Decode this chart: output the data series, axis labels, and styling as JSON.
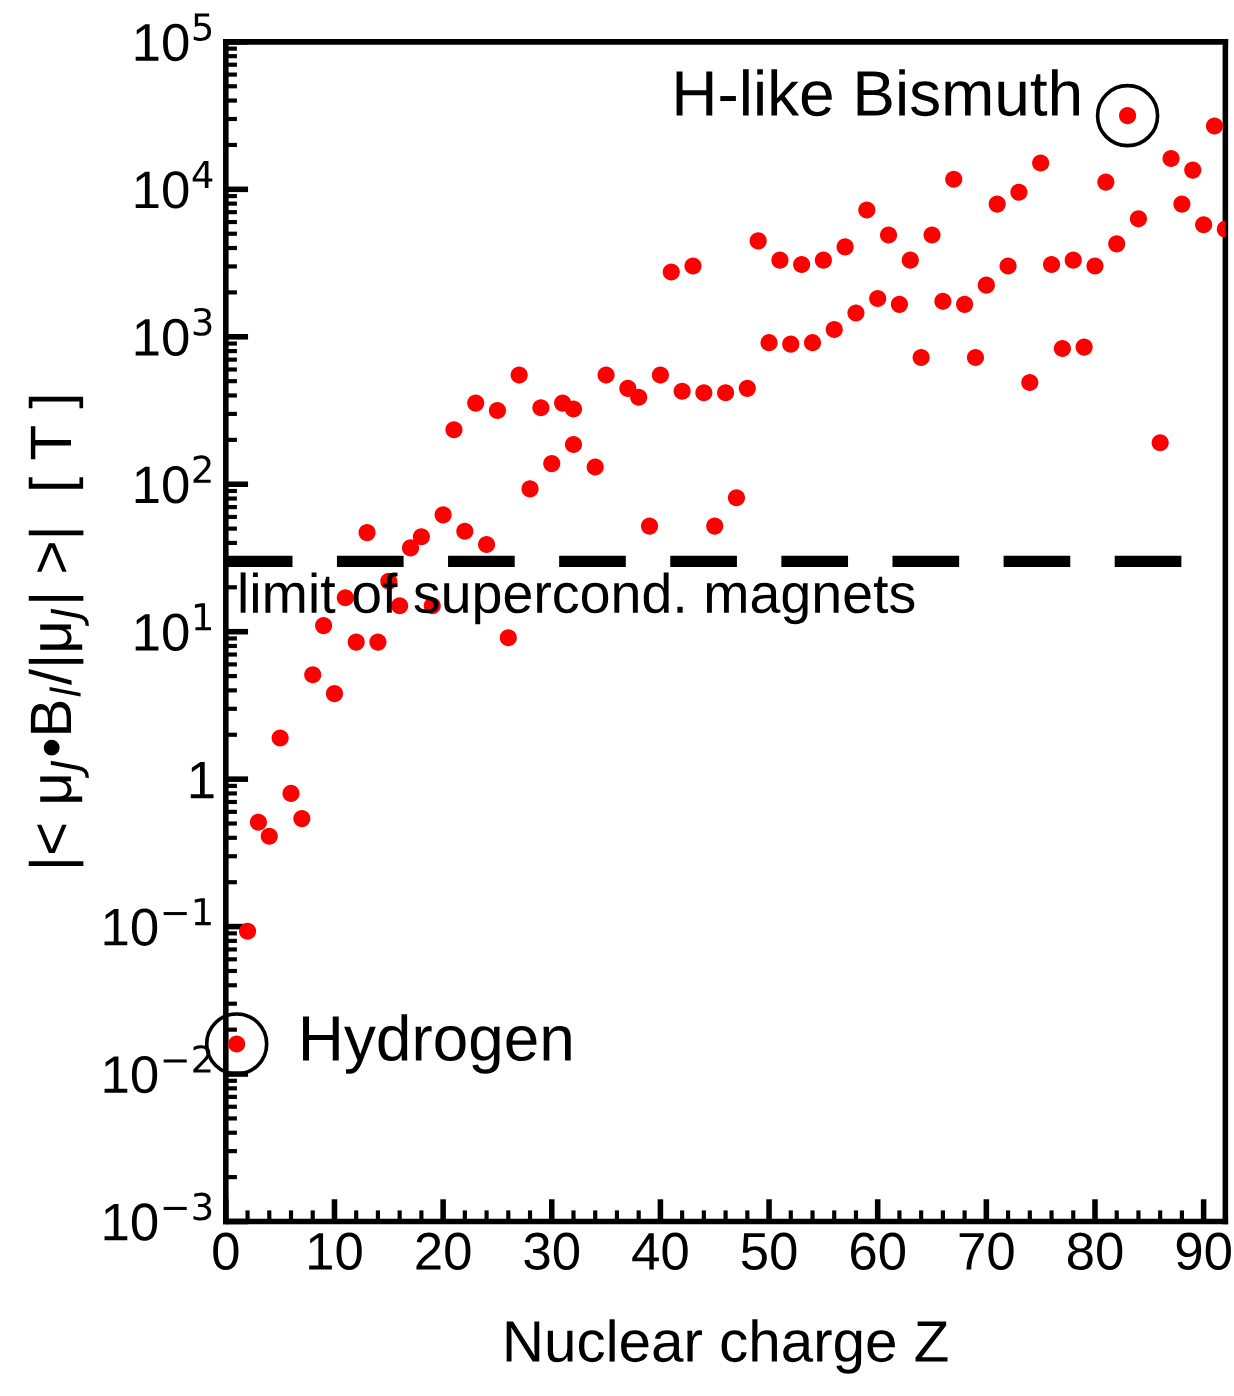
{
  "chart_data": {
    "type": "scatter",
    "xlabel": "Nuclear charge Z",
    "ylabel": "|< μ$_{J}$•B$_{l}$/|μ$_{J}$| >|  [ T ]",
    "x": [
      1,
      2,
      3,
      4,
      5,
      6,
      7,
      8,
      9,
      10,
      11,
      12,
      13,
      14,
      15,
      16,
      17,
      18,
      19,
      20,
      21,
      22,
      23,
      24,
      25,
      26,
      27,
      28,
      29,
      30,
      31,
      32,
      32,
      34,
      35,
      37,
      38,
      39,
      40,
      41,
      42,
      43,
      44,
      45,
      46,
      47,
      48,
      49,
      50,
      51,
      52,
      53,
      54,
      55,
      56,
      57,
      58,
      59,
      60,
      61,
      62,
      63,
      64,
      65,
      66,
      67,
      68,
      69,
      70,
      71,
      72,
      73,
      74,
      75,
      76,
      77,
      78,
      79,
      80,
      81,
      82,
      83,
      84,
      86,
      87,
      88,
      89,
      90,
      91,
      92
    ],
    "series": [
      {
        "color": "#ff0000",
        "values": [
          0.016,
          0.093,
          0.51,
          0.41,
          1.9,
          0.8,
          0.54,
          5.1,
          11,
          3.8,
          17,
          8.5,
          47,
          8.5,
          22,
          15,
          37,
          44,
          15,
          62,
          234,
          48,
          355,
          39,
          316,
          9.1,
          550,
          93,
          330,
          138,
          355,
          324,
          186,
          131,
          550,
          447,
          389,
          52,
          550,
          2750,
          427,
          3020,
          417,
          52,
          417,
          81,
          447,
          4470,
          912,
          3310,
          891,
          3090,
          912,
          3310,
          1120,
          4070,
          1450,
          7240,
          1820,
          4900,
          1660,
          3310,
          724,
          4900,
          1740,
          11700,
          1660,
          724,
          2240,
          7940,
          3020,
          9550,
          490,
          15100,
          3090,
          832,
          3310,
          851,
          3020,
          11200,
          4270,
          31600,
          6310,
          191,
          16200,
          7940,
          13500,
          5750,
          26900,
          5370
        ]
      }
    ],
    "log": true,
    "marker": "circle",
    "xlim": [
      0,
      92
    ],
    "xticks": [
      0,
      10,
      20,
      30,
      40,
      50,
      60,
      70,
      80,
      90
    ],
    "ylim": [
      0.001,
      100000
    ],
    "yticks": [
      {
        "value": 0.001,
        "label": "10$^{−3}$"
      },
      {
        "value": 0.01,
        "label": "10$^{−2}$"
      },
      {
        "value": 0.1,
        "label": "10$^{−1}$"
      },
      {
        "value": 1,
        "label": "1"
      },
      {
        "value": 10,
        "label": "10$^{1}$"
      },
      {
        "value": 100,
        "label": "10$^{2}$"
      },
      {
        "value": 1000,
        "label": "10$^{3}$"
      },
      {
        "value": 10000,
        "label": "10$^{4}$"
      },
      {
        "value": 100000,
        "label": "10$^{5}$"
      }
    ],
    "ref_lines": [
      {
        "axis": "y",
        "value": 30,
        "label": "limit of supercond. magnets",
        "color": "#000000",
        "line_style": "dashed"
      }
    ],
    "annotations": [
      {
        "text": "H-like Bismuth",
        "x": 83,
        "y": 31600
      },
      {
        "text": "Hydrogen",
        "x": 1,
        "y": 0.016
      }
    ],
    "grid": false,
    "legend": false
  }
}
